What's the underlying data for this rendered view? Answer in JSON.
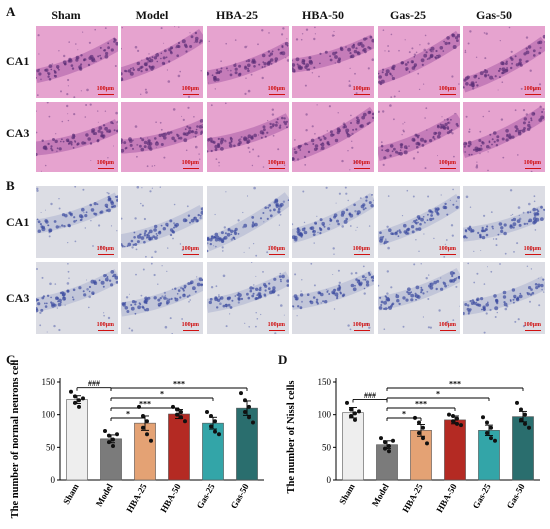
{
  "panel_letters": {
    "A": "A",
    "B": "B",
    "C": "C",
    "D": "D"
  },
  "groups": [
    "Sham",
    "Model",
    "HBA-25",
    "HBA-50",
    "Gas-25",
    "Gas-50"
  ],
  "regions": [
    "CA1",
    "CA3"
  ],
  "scale_label": "100μm",
  "colors": {
    "he_background": "#e6a3cf",
    "he_tissue": "#b96fb1",
    "he_nuclei": "#5c2f78",
    "nissl_background": "#dcdde4",
    "nissl_tissue": "#b9bdd6",
    "nissl_nuclei": "#3c4ba0",
    "bar_colors": [
      "#eeeeee",
      "#7b7b7b",
      "#e4a274",
      "#b42a23",
      "#33a5a8",
      "#2a6e6e"
    ]
  },
  "chart_data": [
    {
      "type": "bar",
      "panel": "C",
      "categories": [
        "Sham",
        "Model",
        "HBA-25",
        "HBA-50",
        "Gas-25",
        "Gas-50"
      ],
      "values": [
        123,
        63,
        87,
        101,
        87,
        110
      ],
      "errors": [
        6,
        6,
        11,
        7,
        9,
        11
      ],
      "points": [
        [
          135,
          128,
          122,
          118,
          112,
          125
        ],
        [
          75,
          68,
          62,
          58,
          52,
          70
        ],
        [
          112,
          98,
          90,
          80,
          70,
          60
        ],
        [
          112,
          108,
          104,
          100,
          96,
          90
        ],
        [
          104,
          98,
          90,
          82,
          74,
          70
        ],
        [
          133,
          122,
          112,
          104,
          96,
          88
        ]
      ],
      "ylabel": "The number of normal neurons cells",
      "ylim": [
        0,
        150
      ],
      "yticks": [
        0,
        50,
        100,
        150
      ],
      "annotations": [
        {
          "from": "Sham",
          "to": "Model",
          "label": "###"
        },
        {
          "from": "Model",
          "to": "HBA-25",
          "label": "*"
        },
        {
          "from": "Model",
          "to": "HBA-50",
          "label": "***"
        },
        {
          "from": "Model",
          "to": "Gas-25",
          "label": "*"
        },
        {
          "from": "Model",
          "to": "Gas-50",
          "label": "***"
        }
      ]
    },
    {
      "type": "bar",
      "panel": "D",
      "categories": [
        "Sham",
        "Model",
        "HBA-25",
        "HBA-50",
        "Gas-25",
        "Gas-50"
      ],
      "values": [
        103,
        54,
        76,
        92,
        76,
        97
      ],
      "errors": [
        8,
        6,
        9,
        6,
        8,
        8
      ],
      "points": [
        [
          118,
          108,
          102,
          98,
          92,
          105
        ],
        [
          64,
          58,
          52,
          48,
          44,
          60
        ],
        [
          95,
          88,
          80,
          72,
          64,
          56
        ],
        [
          100,
          98,
          94,
          90,
          86,
          84
        ],
        [
          96,
          88,
          80,
          72,
          64,
          60
        ],
        [
          118,
          108,
          100,
          92,
          86,
          80
        ]
      ],
      "ylabel": "The number of Nissl cells",
      "ylim": [
        0,
        150
      ],
      "yticks": [
        0,
        50,
        100,
        150
      ],
      "annotations": [
        {
          "from": "Sham",
          "to": "Model",
          "label": "###"
        },
        {
          "from": "Model",
          "to": "HBA-25",
          "label": "*"
        },
        {
          "from": "Model",
          "to": "HBA-50",
          "label": "***"
        },
        {
          "from": "Model",
          "to": "Gas-25",
          "label": "*"
        },
        {
          "from": "Model",
          "to": "Gas-50",
          "label": "***"
        }
      ]
    }
  ]
}
